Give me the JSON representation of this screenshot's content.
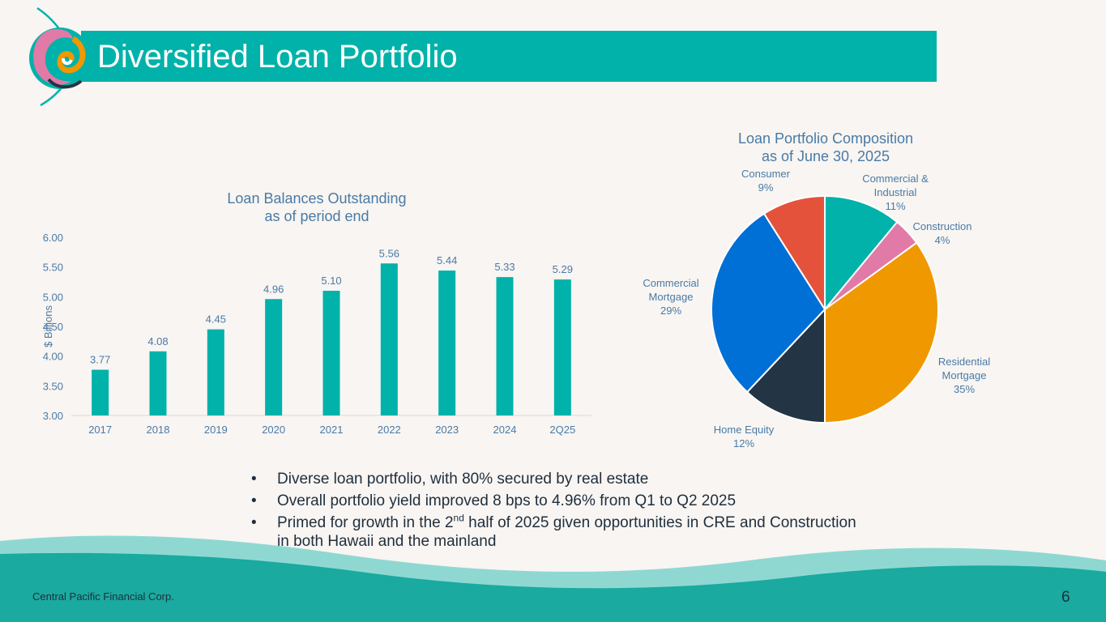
{
  "header": {
    "title": "Diversified Loan Portfolio"
  },
  "colors": {
    "teal": "#00b2a9",
    "title_text": "#4a7aa6",
    "text": "#1f2e3d"
  },
  "bar_title": [
    "Loan Balances Outstanding",
    "as of period end"
  ],
  "pie_title": [
    "Loan Portfolio Composition",
    "as of June 30, 2025"
  ],
  "bullets": [
    {
      "text": "Diverse loan portfolio, with 80% secured by real estate"
    },
    {
      "text": "Overall portfolio yield improved 8 bps to 4.96% from Q1 to Q2 2025"
    },
    {
      "pre": "Primed for growth in the 2",
      "sup": "nd",
      "post": " half of 2025 given opportunities in CRE and Construction in both Hawaii and the mainland"
    }
  ],
  "bullet_glyph": "•",
  "footer": {
    "company": "Central Pacific Financial Corp.",
    "page": "6"
  },
  "chart_data": [
    {
      "type": "bar",
      "title": "Loan Balances Outstanding as of period end",
      "ylabel": "$ Billions",
      "categories": [
        "2017",
        "2018",
        "2019",
        "2020",
        "2021",
        "2022",
        "2023",
        "2024",
        "2Q25"
      ],
      "values": [
        3.77,
        4.08,
        4.45,
        4.96,
        5.1,
        5.56,
        5.44,
        5.33,
        5.29
      ],
      "value_labels": [
        "3.77",
        "4.08",
        "4.45",
        "4.96",
        "5.10",
        "5.56",
        "5.44",
        "5.33",
        "5.29"
      ],
      "ylim": [
        3.0,
        6.0
      ],
      "yticks": [
        "3.00",
        "3.50",
        "4.00",
        "4.50",
        "5.00",
        "5.50",
        "6.00"
      ],
      "color": "#00b2a9",
      "grid": false
    },
    {
      "type": "pie",
      "title": "Loan Portfolio Composition as of June 30, 2025",
      "slices": [
        {
          "name": "Commercial & Industrial",
          "lines": [
            "Commercial &",
            "Industrial",
            "11%"
          ],
          "value": 11,
          "color": "#00b2a9"
        },
        {
          "name": "Construction",
          "lines": [
            "Construction",
            "4%"
          ],
          "value": 4,
          "color": "#e17aa6"
        },
        {
          "name": "Residential Mortgage",
          "lines": [
            "Residential",
            "Mortgage",
            "35%"
          ],
          "value": 35,
          "color": "#f09800"
        },
        {
          "name": "Home Equity",
          "lines": [
            "Home Equity",
            "12%"
          ],
          "value": 12,
          "color": "#233445"
        },
        {
          "name": "Commercial Mortgage",
          "lines": [
            "Commercial",
            "Mortgage",
            "29%"
          ],
          "value": 29,
          "color": "#006fd6"
        },
        {
          "name": "Consumer",
          "lines": [
            "Consumer",
            "9%"
          ],
          "value": 9,
          "color": "#e4523c"
        }
      ]
    }
  ]
}
